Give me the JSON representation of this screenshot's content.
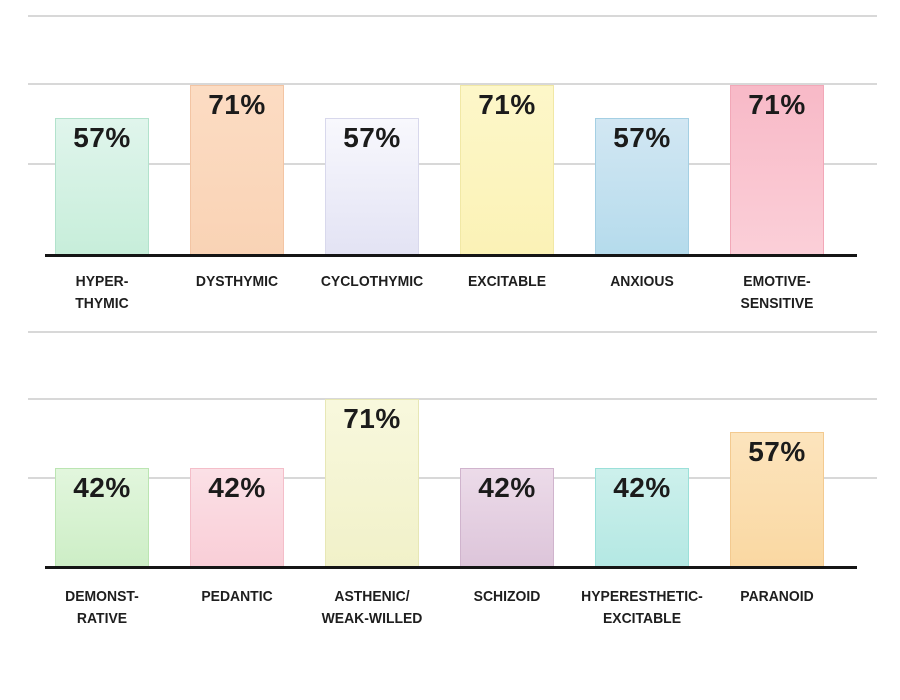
{
  "page": {
    "background_color": "#ffffff",
    "description_texts": {}
  },
  "styles": {
    "gridline_color": "#d8d8d8",
    "baseline_color": "#151515",
    "value_label_color": "#1b1b1b",
    "category_label_color": "#1e1e1e"
  },
  "chart_data": [
    {
      "type": "bar",
      "row": "top",
      "title": "",
      "xlabel": "",
      "ylabel": "",
      "ylim": [
        0,
        100
      ],
      "unit": "%",
      "grid": true,
      "legend_position": "none",
      "categories": [
        "HYPER-\nTHYMIC",
        "DYSTHYMIC",
        "CYCLOTHYMIC",
        "EXCITABLE",
        "ANXIOUS",
        "EMOTIVE-\nSENSITIVE"
      ],
      "values": [
        57,
        71,
        57,
        71,
        57,
        71
      ],
      "value_labels": [
        "57%",
        "71%",
        "57%",
        "71%",
        "57%",
        "71%"
      ],
      "bar_keys": [
        "hyperthymic",
        "dysthymic",
        "cyclothymic",
        "excitable",
        "anxious",
        "emotive-sensitive"
      ],
      "bar_colors": [
        {
          "top": "#e0f5ec",
          "bottom": "#c7eeda",
          "border": "#b2e2cc"
        },
        {
          "top": "#fcdcc3",
          "bottom": "#f9d3b5",
          "border": "#f3c5a4"
        },
        {
          "top": "#f8f8fd",
          "bottom": "#e3e3f4",
          "border": "#d8d8ec"
        },
        {
          "top": "#fdf7c9",
          "bottom": "#fbf2b6",
          "border": "#f1e8a6"
        },
        {
          "top": "#d2e7f3",
          "bottom": "#b5dbec",
          "border": "#a4cfe3"
        },
        {
          "top": "#f8b9c7",
          "bottom": "#fbcfd8",
          "border": "#f2a8b8"
        }
      ]
    },
    {
      "type": "bar",
      "row": "bottom",
      "title": "",
      "xlabel": "",
      "ylabel": "",
      "ylim": [
        0,
        100
      ],
      "unit": "%",
      "grid": true,
      "legend_position": "none",
      "categories": [
        "DEMONST-\nRATIVE",
        "PEDANTIC",
        "ASTHENIC/\nWEAK-WILLED",
        "SCHIZOID",
        "HYPERESTHETIC-\nEXCITABLE",
        "PARANOID"
      ],
      "values": [
        42,
        42,
        71,
        42,
        42,
        57
      ],
      "value_labels": [
        "42%",
        "42%",
        "71%",
        "42%",
        "42%",
        "57%"
      ],
      "bar_keys": [
        "demonstrative",
        "pedantic",
        "asthenic-weak-willed",
        "schizoid",
        "hyperesthetic-excitable",
        "paranoid"
      ],
      "bar_colors": [
        {
          "top": "#e2f6dd",
          "bottom": "#cdeec6",
          "border": "#bbe5b2"
        },
        {
          "top": "#fbe0e6",
          "bottom": "#f9ced7",
          "border": "#f4bec9"
        },
        {
          "top": "#f8f8dd",
          "bottom": "#f1f1c9",
          "border": "#e7e7b6"
        },
        {
          "top": "#ecdbe9",
          "bottom": "#ddc5da",
          "border": "#d0b4cd"
        },
        {
          "top": "#cdf0ec",
          "bottom": "#b4e8e3",
          "border": "#9be0d9"
        },
        {
          "top": "#fce4bd",
          "bottom": "#fad8a2",
          "border": "#f3ca90"
        }
      ]
    }
  ]
}
